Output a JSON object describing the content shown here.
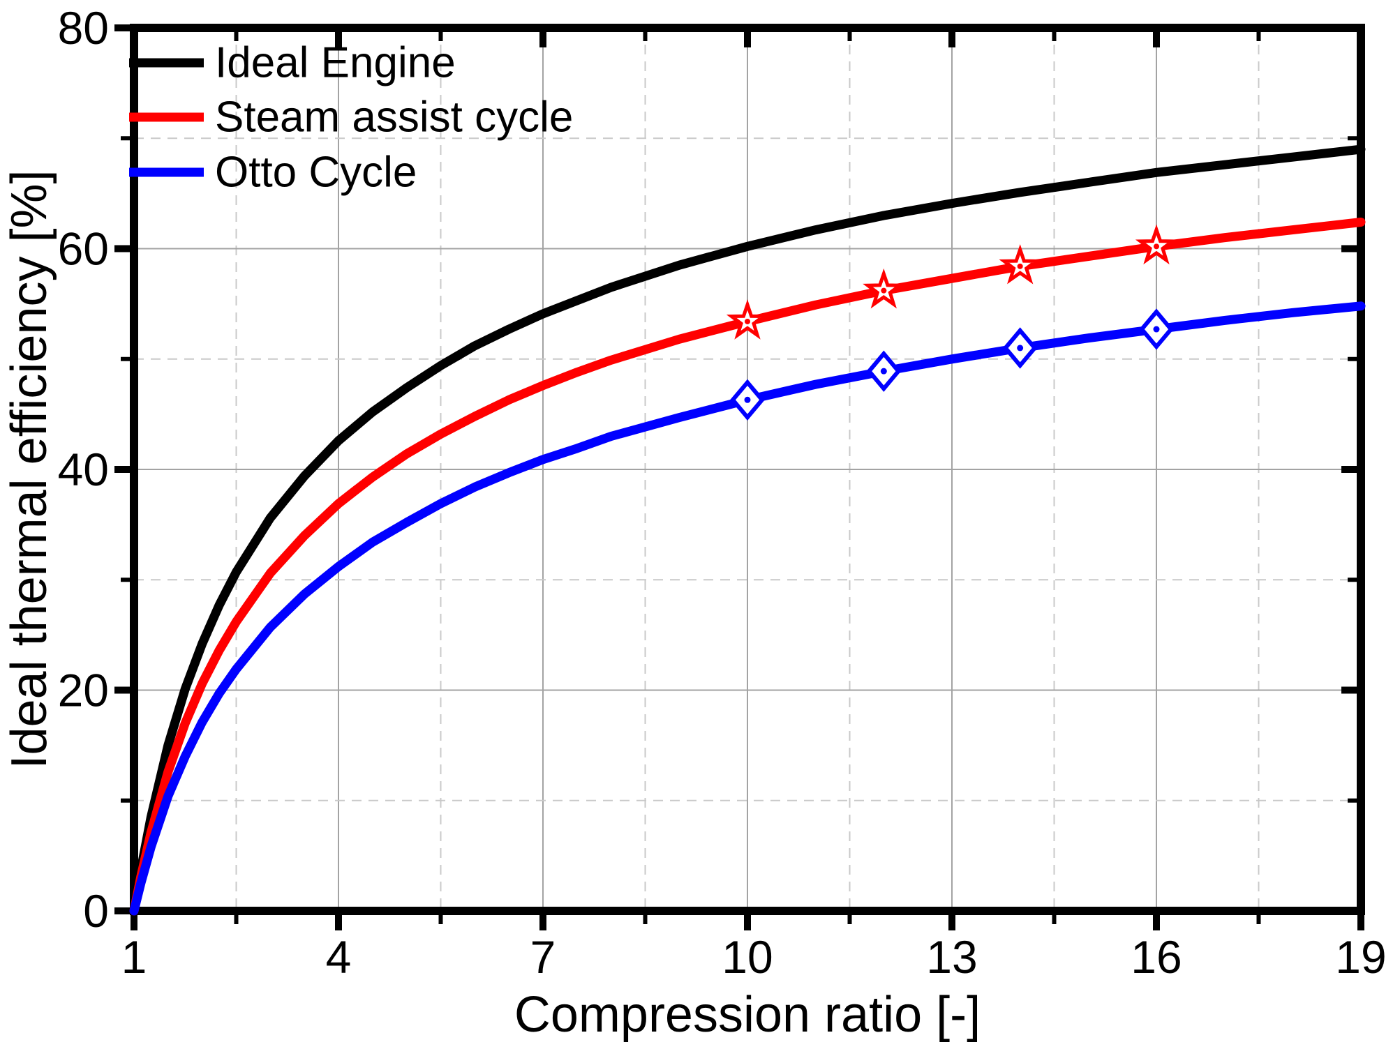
{
  "chart_data": {
    "type": "line",
    "title": "",
    "xlabel": "Compression ratio [-]",
    "ylabel": "Ideal thermal efficiency [%]",
    "xlim": [
      1,
      19
    ],
    "ylim": [
      0,
      80
    ],
    "x_major_ticks": [
      1,
      4,
      7,
      10,
      13,
      16,
      19
    ],
    "x_minor_ticks": [
      2.5,
      5.5,
      8.5,
      11.5,
      14.5,
      17.5
    ],
    "y_major_ticks": [
      0,
      20,
      40,
      60,
      80
    ],
    "y_minor_ticks": [
      10,
      30,
      50,
      70
    ],
    "grid": {
      "major_style": "solid",
      "minor_style": "dashed",
      "major_color": "#a3a3a3",
      "minor_color": "#c9c9c9"
    },
    "legend_position": "top-left-inside",
    "series": [
      {
        "name": "Ideal Engine",
        "color": "#000000",
        "marker": "none",
        "x": [
          1,
          1.1,
          1.25,
          1.5,
          1.75,
          2,
          2.25,
          2.5,
          3,
          3.5,
          4,
          4.5,
          5,
          5.5,
          6,
          6.5,
          7,
          7.5,
          8,
          9,
          10,
          11,
          12,
          13,
          14,
          15,
          16,
          17,
          18,
          19
        ],
        "y": [
          0,
          3.7,
          8.5,
          15.0,
          20.1,
          24.2,
          27.7,
          30.7,
          35.6,
          39.4,
          42.6,
          45.2,
          47.4,
          49.4,
          51.2,
          52.7,
          54.1,
          55.3,
          56.5,
          58.5,
          60.2,
          61.7,
          63.0,
          64.1,
          65.1,
          66.0,
          66.9,
          67.6,
          68.3,
          69.0
        ]
      },
      {
        "name": "Steam assist cycle",
        "color": "#ff0000",
        "marker": "star",
        "marker_x": [
          10,
          12,
          14,
          16
        ],
        "marker_y": [
          53.4,
          56.2,
          58.4,
          60.2
        ],
        "x": [
          1,
          1.1,
          1.25,
          1.5,
          1.75,
          2,
          2.25,
          2.5,
          3,
          3.5,
          4,
          4.5,
          5,
          5.5,
          6,
          6.5,
          7,
          7.5,
          8,
          9,
          10,
          11,
          12,
          13,
          14,
          15,
          16,
          17,
          18,
          19
        ],
        "y": [
          0,
          3.1,
          7.1,
          12.6,
          17.0,
          20.6,
          23.6,
          26.2,
          30.6,
          34.0,
          36.9,
          39.3,
          41.4,
          43.2,
          44.8,
          46.3,
          47.6,
          48.8,
          49.9,
          51.8,
          53.4,
          54.9,
          56.2,
          57.3,
          58.4,
          59.3,
          60.2,
          61.0,
          61.7,
          62.4
        ]
      },
      {
        "name": "Otto Cycle",
        "color": "#0000ff",
        "marker": "diamond",
        "marker_x": [
          10,
          12,
          14,
          16
        ],
        "marker_y": [
          46.3,
          48.9,
          51.0,
          52.7
        ],
        "x": [
          1,
          1.1,
          1.25,
          1.5,
          1.75,
          2,
          2.25,
          2.5,
          3,
          3.5,
          4,
          4.5,
          5,
          5.5,
          6,
          6.5,
          7,
          7.5,
          8,
          9,
          10,
          11,
          12,
          13,
          14,
          15,
          16,
          17,
          18,
          19
        ],
        "y": [
          0,
          2.5,
          5.8,
          10.4,
          14.0,
          17.1,
          19.7,
          21.9,
          25.7,
          28.7,
          31.2,
          33.4,
          35.2,
          36.9,
          38.4,
          39.7,
          40.9,
          41.9,
          43.0,
          44.7,
          46.3,
          47.7,
          48.9,
          50.0,
          51.0,
          51.9,
          52.7,
          53.5,
          54.2,
          54.8
        ]
      }
    ]
  }
}
